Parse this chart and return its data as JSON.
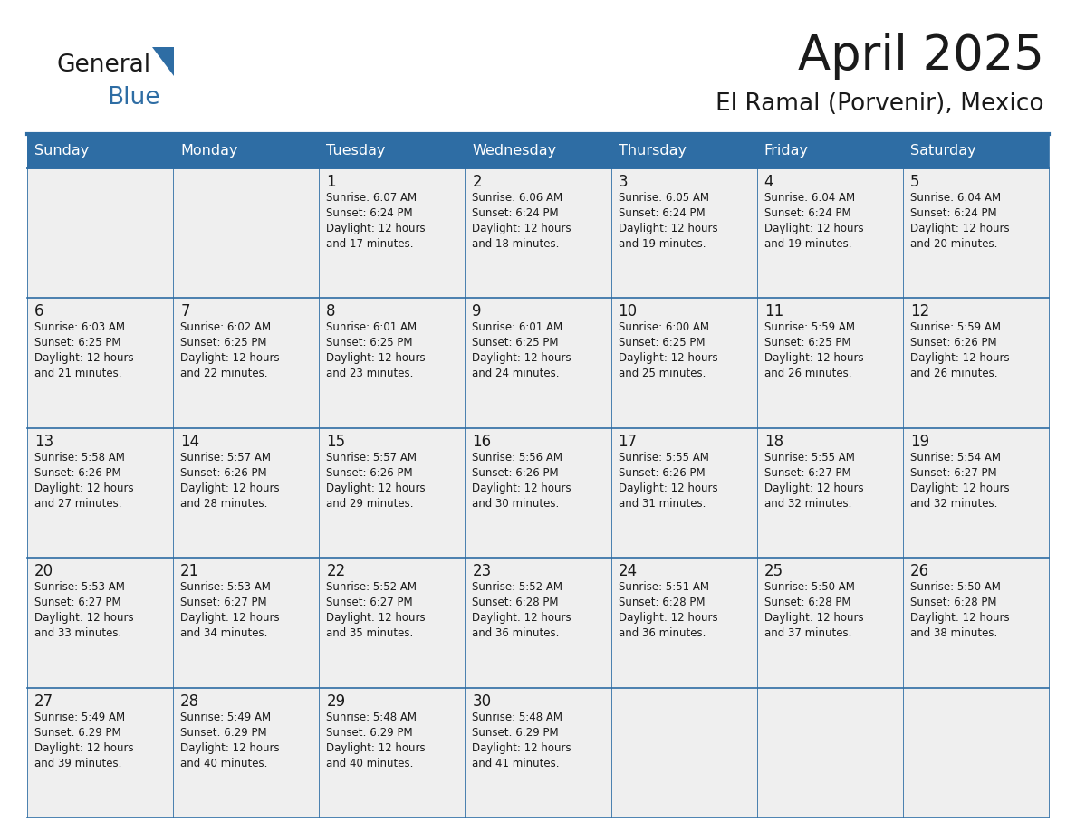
{
  "title": "April 2025",
  "subtitle": "El Ramal (Porvenir), Mexico",
  "header_color": "#2E6DA4",
  "header_text_color": "#FFFFFF",
  "cell_bg_odd": "#EFEFEF",
  "cell_bg_even": "#EFEFEF",
  "border_color": "#2E6DA4",
  "text_color": "#1a1a1a",
  "day_names": [
    "Sunday",
    "Monday",
    "Tuesday",
    "Wednesday",
    "Thursday",
    "Friday",
    "Saturday"
  ],
  "days": [
    {
      "day": 1,
      "col": 2,
      "row": 0,
      "sunrise": "6:07 AM",
      "sunset": "6:24 PM",
      "daylight": "12 hours",
      "daylight2": "and 17 minutes."
    },
    {
      "day": 2,
      "col": 3,
      "row": 0,
      "sunrise": "6:06 AM",
      "sunset": "6:24 PM",
      "daylight": "12 hours",
      "daylight2": "and 18 minutes."
    },
    {
      "day": 3,
      "col": 4,
      "row": 0,
      "sunrise": "6:05 AM",
      "sunset": "6:24 PM",
      "daylight": "12 hours",
      "daylight2": "and 19 minutes."
    },
    {
      "day": 4,
      "col": 5,
      "row": 0,
      "sunrise": "6:04 AM",
      "sunset": "6:24 PM",
      "daylight": "12 hours",
      "daylight2": "and 19 minutes."
    },
    {
      "day": 5,
      "col": 6,
      "row": 0,
      "sunrise": "6:04 AM",
      "sunset": "6:24 PM",
      "daylight": "12 hours",
      "daylight2": "and 20 minutes."
    },
    {
      "day": 6,
      "col": 0,
      "row": 1,
      "sunrise": "6:03 AM",
      "sunset": "6:25 PM",
      "daylight": "12 hours",
      "daylight2": "and 21 minutes."
    },
    {
      "day": 7,
      "col": 1,
      "row": 1,
      "sunrise": "6:02 AM",
      "sunset": "6:25 PM",
      "daylight": "12 hours",
      "daylight2": "and 22 minutes."
    },
    {
      "day": 8,
      "col": 2,
      "row": 1,
      "sunrise": "6:01 AM",
      "sunset": "6:25 PM",
      "daylight": "12 hours",
      "daylight2": "and 23 minutes."
    },
    {
      "day": 9,
      "col": 3,
      "row": 1,
      "sunrise": "6:01 AM",
      "sunset": "6:25 PM",
      "daylight": "12 hours",
      "daylight2": "and 24 minutes."
    },
    {
      "day": 10,
      "col": 4,
      "row": 1,
      "sunrise": "6:00 AM",
      "sunset": "6:25 PM",
      "daylight": "12 hours",
      "daylight2": "and 25 minutes."
    },
    {
      "day": 11,
      "col": 5,
      "row": 1,
      "sunrise": "5:59 AM",
      "sunset": "6:25 PM",
      "daylight": "12 hours",
      "daylight2": "and 26 minutes."
    },
    {
      "day": 12,
      "col": 6,
      "row": 1,
      "sunrise": "5:59 AM",
      "sunset": "6:26 PM",
      "daylight": "12 hours",
      "daylight2": "and 26 minutes."
    },
    {
      "day": 13,
      "col": 0,
      "row": 2,
      "sunrise": "5:58 AM",
      "sunset": "6:26 PM",
      "daylight": "12 hours",
      "daylight2": "and 27 minutes."
    },
    {
      "day": 14,
      "col": 1,
      "row": 2,
      "sunrise": "5:57 AM",
      "sunset": "6:26 PM",
      "daylight": "12 hours",
      "daylight2": "and 28 minutes."
    },
    {
      "day": 15,
      "col": 2,
      "row": 2,
      "sunrise": "5:57 AM",
      "sunset": "6:26 PM",
      "daylight": "12 hours",
      "daylight2": "and 29 minutes."
    },
    {
      "day": 16,
      "col": 3,
      "row": 2,
      "sunrise": "5:56 AM",
      "sunset": "6:26 PM",
      "daylight": "12 hours",
      "daylight2": "and 30 minutes."
    },
    {
      "day": 17,
      "col": 4,
      "row": 2,
      "sunrise": "5:55 AM",
      "sunset": "6:26 PM",
      "daylight": "12 hours",
      "daylight2": "and 31 minutes."
    },
    {
      "day": 18,
      "col": 5,
      "row": 2,
      "sunrise": "5:55 AM",
      "sunset": "6:27 PM",
      "daylight": "12 hours",
      "daylight2": "and 32 minutes."
    },
    {
      "day": 19,
      "col": 6,
      "row": 2,
      "sunrise": "5:54 AM",
      "sunset": "6:27 PM",
      "daylight": "12 hours",
      "daylight2": "and 32 minutes."
    },
    {
      "day": 20,
      "col": 0,
      "row": 3,
      "sunrise": "5:53 AM",
      "sunset": "6:27 PM",
      "daylight": "12 hours",
      "daylight2": "and 33 minutes."
    },
    {
      "day": 21,
      "col": 1,
      "row": 3,
      "sunrise": "5:53 AM",
      "sunset": "6:27 PM",
      "daylight": "12 hours",
      "daylight2": "and 34 minutes."
    },
    {
      "day": 22,
      "col": 2,
      "row": 3,
      "sunrise": "5:52 AM",
      "sunset": "6:27 PM",
      "daylight": "12 hours",
      "daylight2": "and 35 minutes."
    },
    {
      "day": 23,
      "col": 3,
      "row": 3,
      "sunrise": "5:52 AM",
      "sunset": "6:28 PM",
      "daylight": "12 hours",
      "daylight2": "and 36 minutes."
    },
    {
      "day": 24,
      "col": 4,
      "row": 3,
      "sunrise": "5:51 AM",
      "sunset": "6:28 PM",
      "daylight": "12 hours",
      "daylight2": "and 36 minutes."
    },
    {
      "day": 25,
      "col": 5,
      "row": 3,
      "sunrise": "5:50 AM",
      "sunset": "6:28 PM",
      "daylight": "12 hours",
      "daylight2": "and 37 minutes."
    },
    {
      "day": 26,
      "col": 6,
      "row": 3,
      "sunrise": "5:50 AM",
      "sunset": "6:28 PM",
      "daylight": "12 hours",
      "daylight2": "and 38 minutes."
    },
    {
      "day": 27,
      "col": 0,
      "row": 4,
      "sunrise": "5:49 AM",
      "sunset": "6:29 PM",
      "daylight": "12 hours",
      "daylight2": "and 39 minutes."
    },
    {
      "day": 28,
      "col": 1,
      "row": 4,
      "sunrise": "5:49 AM",
      "sunset": "6:29 PM",
      "daylight": "12 hours",
      "daylight2": "and 40 minutes."
    },
    {
      "day": 29,
      "col": 2,
      "row": 4,
      "sunrise": "5:48 AM",
      "sunset": "6:29 PM",
      "daylight": "12 hours",
      "daylight2": "and 40 minutes."
    },
    {
      "day": 30,
      "col": 3,
      "row": 4,
      "sunrise": "5:48 AM",
      "sunset": "6:29 PM",
      "daylight": "12 hours",
      "daylight2": "and 41 minutes."
    }
  ]
}
